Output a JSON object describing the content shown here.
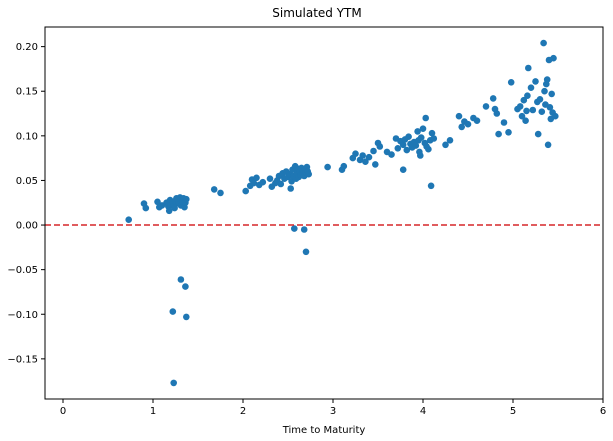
{
  "chart_data": {
    "type": "scatter",
    "title": "Simulated YTM",
    "xlabel": "Time to Maturity",
    "ylabel": "",
    "xlim": [
      -0.2,
      6.0
    ],
    "ylim": [
      -0.195,
      0.222
    ],
    "xticks": [
      0,
      1,
      2,
      3,
      4,
      5,
      6
    ],
    "xtick_labels": [
      "0",
      "1",
      "2",
      "3",
      "4",
      "5",
      "6"
    ],
    "yticks": [
      -0.15,
      -0.1,
      -0.05,
      0.0,
      0.05,
      0.1,
      0.15,
      0.2
    ],
    "ytick_labels": [
      "−0.15",
      "−0.10",
      "−0.05",
      "0.00",
      "0.05",
      "0.10",
      "0.15",
      "0.20"
    ],
    "grid": false,
    "point_color": "#1f77b4",
    "reference_line": {
      "y": 0.0,
      "color": "#d62728",
      "style": "dashed"
    },
    "series": [
      {
        "points": [
          [
            0.73,
            0.006
          ],
          [
            0.9,
            0.024
          ],
          [
            0.92,
            0.019
          ],
          [
            1.05,
            0.026
          ],
          [
            1.07,
            0.02
          ],
          [
            1.1,
            0.022
          ],
          [
            1.15,
            0.025
          ],
          [
            1.17,
            0.021
          ],
          [
            1.19,
            0.028
          ],
          [
            1.2,
            0.023
          ],
          [
            1.22,
            0.026
          ],
          [
            1.23,
            0.021
          ],
          [
            1.25,
            0.027
          ],
          [
            1.26,
            0.024
          ],
          [
            1.28,
            0.029
          ],
          [
            1.29,
            0.025
          ],
          [
            1.3,
            0.031
          ],
          [
            1.31,
            0.022
          ],
          [
            1.32,
            0.028
          ],
          [
            1.33,
            0.026
          ],
          [
            1.34,
            0.03
          ],
          [
            1.35,
            0.02
          ],
          [
            1.36,
            0.025
          ],
          [
            1.37,
            0.029
          ],
          [
            1.26,
            0.03
          ],
          [
            1.24,
            0.019
          ],
          [
            1.18,
            0.016
          ],
          [
            1.22,
            -0.097
          ],
          [
            1.31,
            -0.061
          ],
          [
            1.36,
            -0.069
          ],
          [
            1.37,
            -0.103
          ],
          [
            1.23,
            -0.177
          ],
          [
            1.68,
            0.04
          ],
          [
            1.75,
            0.036
          ],
          [
            2.03,
            0.038
          ],
          [
            2.08,
            0.044
          ],
          [
            2.1,
            0.051
          ],
          [
            2.12,
            0.047
          ],
          [
            2.15,
            0.053
          ],
          [
            2.18,
            0.045
          ],
          [
            2.22,
            0.048
          ],
          [
            2.3,
            0.052
          ],
          [
            2.32,
            0.043
          ],
          [
            2.38,
            0.05
          ],
          [
            2.4,
            0.055
          ],
          [
            2.42,
            0.046
          ],
          [
            2.44,
            0.058
          ],
          [
            2.46,
            0.052
          ],
          [
            2.48,
            0.06
          ],
          [
            2.5,
            0.054
          ],
          [
            2.52,
            0.057
          ],
          [
            2.54,
            0.049
          ],
          [
            2.55,
            0.062
          ],
          [
            2.56,
            0.055
          ],
          [
            2.58,
            0.066
          ],
          [
            2.59,
            0.052
          ],
          [
            2.6,
            0.058
          ],
          [
            2.61,
            0.063
          ],
          [
            2.62,
            0.054
          ],
          [
            2.63,
            0.06
          ],
          [
            2.64,
            0.056
          ],
          [
            2.65,
            0.064
          ],
          [
            2.66,
            0.058
          ],
          [
            2.67,
            0.061
          ],
          [
            2.68,
            0.055
          ],
          [
            2.69,
            0.063
          ],
          [
            2.7,
            0.059
          ],
          [
            2.71,
            0.065
          ],
          [
            2.72,
            0.06
          ],
          [
            2.73,
            0.057
          ],
          [
            2.53,
            0.041
          ],
          [
            2.36,
            0.047
          ],
          [
            2.57,
            -0.004
          ],
          [
            2.68,
            -0.005
          ],
          [
            2.7,
            -0.03
          ],
          [
            2.94,
            0.065
          ],
          [
            3.1,
            0.062
          ],
          [
            3.12,
            0.066
          ],
          [
            3.22,
            0.075
          ],
          [
            3.25,
            0.08
          ],
          [
            3.3,
            0.073
          ],
          [
            3.33,
            0.078
          ],
          [
            3.36,
            0.071
          ],
          [
            3.4,
            0.076
          ],
          [
            3.45,
            0.083
          ],
          [
            3.47,
            0.068
          ],
          [
            3.5,
            0.092
          ],
          [
            3.52,
            0.088
          ],
          [
            3.6,
            0.082
          ],
          [
            3.65,
            0.079
          ],
          [
            3.7,
            0.097
          ],
          [
            3.72,
            0.086
          ],
          [
            3.75,
            0.094
          ],
          [
            3.78,
            0.09
          ],
          [
            3.8,
            0.096
          ],
          [
            3.82,
            0.084
          ],
          [
            3.84,
            0.099
          ],
          [
            3.86,
            0.091
          ],
          [
            3.88,
            0.087
          ],
          [
            3.9,
            0.093
          ],
          [
            3.92,
            0.089
          ],
          [
            3.94,
            0.105
          ],
          [
            3.95,
            0.095
          ],
          [
            3.96,
            0.082
          ],
          [
            3.98,
            0.098
          ],
          [
            4.0,
            0.108
          ],
          [
            4.02,
            0.092
          ],
          [
            4.04,
            0.088
          ],
          [
            4.06,
            0.085
          ],
          [
            4.08,
            0.095
          ],
          [
            4.1,
            0.103
          ],
          [
            4.12,
            0.097
          ],
          [
            3.78,
            0.062
          ],
          [
            3.97,
            0.078
          ],
          [
            4.03,
            0.12
          ],
          [
            4.09,
            0.044
          ],
          [
            4.25,
            0.09
          ],
          [
            4.3,
            0.095
          ],
          [
            4.4,
            0.122
          ],
          [
            4.43,
            0.11
          ],
          [
            4.46,
            0.116
          ],
          [
            4.5,
            0.113
          ],
          [
            4.56,
            0.12
          ],
          [
            4.6,
            0.117
          ],
          [
            4.7,
            0.133
          ],
          [
            4.78,
            0.142
          ],
          [
            4.8,
            0.13
          ],
          [
            4.82,
            0.125
          ],
          [
            4.84,
            0.102
          ],
          [
            4.9,
            0.115
          ],
          [
            4.95,
            0.104
          ],
          [
            4.98,
            0.16
          ],
          [
            5.05,
            0.13
          ],
          [
            5.08,
            0.133
          ],
          [
            5.1,
            0.122
          ],
          [
            5.12,
            0.14
          ],
          [
            5.14,
            0.117
          ],
          [
            5.15,
            0.128
          ],
          [
            5.16,
            0.145
          ],
          [
            5.17,
            0.176
          ],
          [
            5.2,
            0.154
          ],
          [
            5.22,
            0.129
          ],
          [
            5.25,
            0.161
          ],
          [
            5.27,
            0.138
          ],
          [
            5.28,
            0.102
          ],
          [
            5.3,
            0.141
          ],
          [
            5.32,
            0.127
          ],
          [
            5.34,
            0.204
          ],
          [
            5.35,
            0.15
          ],
          [
            5.36,
            0.135
          ],
          [
            5.37,
            0.158
          ],
          [
            5.38,
            0.163
          ],
          [
            5.39,
            0.09
          ],
          [
            5.4,
            0.185
          ],
          [
            5.41,
            0.132
          ],
          [
            5.42,
            0.119
          ],
          [
            5.43,
            0.147
          ],
          [
            5.44,
            0.126
          ],
          [
            5.45,
            0.187
          ],
          [
            5.47,
            0.122
          ]
        ]
      }
    ]
  }
}
